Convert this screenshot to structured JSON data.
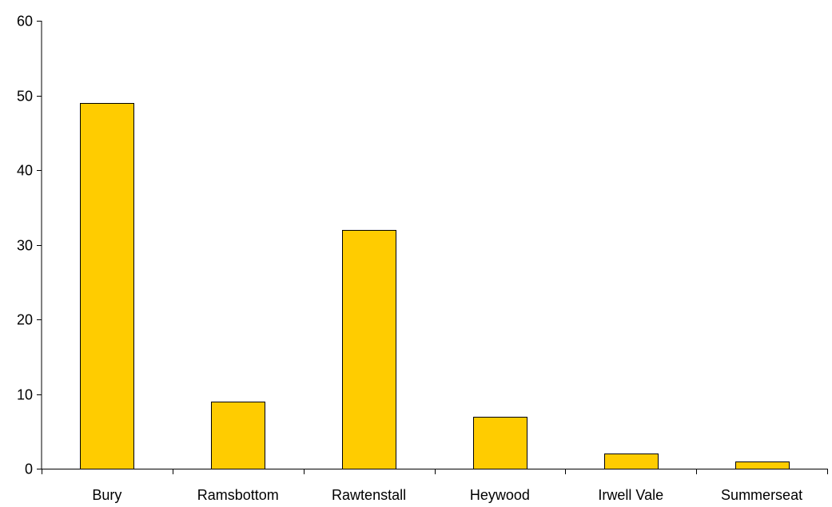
{
  "chart_data": {
    "type": "bar",
    "title": "",
    "xlabel": "",
    "ylabel": "",
    "categories": [
      "Bury",
      "Ramsbottom",
      "Rawtenstall",
      "Heywood",
      "Irwell Vale",
      "Summerseat"
    ],
    "values": [
      49,
      9,
      32,
      7,
      2,
      1
    ],
    "ylim": [
      0,
      60
    ],
    "yticks": [
      0,
      10,
      20,
      30,
      40,
      50,
      60
    ],
    "grid": false,
    "legend": "none",
    "colors": {
      "bar_fill": "#FFCC00",
      "bar_stroke": "#000000",
      "axis": "#000000"
    }
  }
}
